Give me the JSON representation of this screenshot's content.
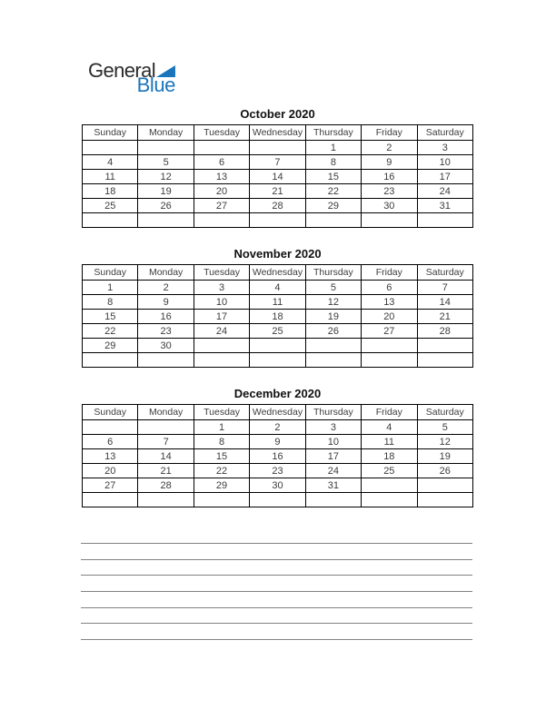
{
  "logo": {
    "word1": "General",
    "word2": "Blue",
    "brand_blue": "#1B75BC",
    "text_color": "#2B2B2B"
  },
  "calendar": {
    "day_headers": [
      "Sunday",
      "Monday",
      "Tuesday",
      "Wednesday",
      "Thursday",
      "Friday",
      "Saturday"
    ],
    "months": [
      {
        "title": "October 2020",
        "weeks": [
          [
            "",
            "",
            "",
            "",
            "1",
            "2",
            "3"
          ],
          [
            "4",
            "5",
            "6",
            "7",
            "8",
            "9",
            "10"
          ],
          [
            "11",
            "12",
            "13",
            "14",
            "15",
            "16",
            "17"
          ],
          [
            "18",
            "19",
            "20",
            "21",
            "22",
            "23",
            "24"
          ],
          [
            "25",
            "26",
            "27",
            "28",
            "29",
            "30",
            "31"
          ],
          [
            "",
            "",
            "",
            "",
            "",
            "",
            ""
          ]
        ]
      },
      {
        "title": "November 2020",
        "weeks": [
          [
            "1",
            "2",
            "3",
            "4",
            "5",
            "6",
            "7"
          ],
          [
            "8",
            "9",
            "10",
            "11",
            "12",
            "13",
            "14"
          ],
          [
            "15",
            "16",
            "17",
            "18",
            "19",
            "20",
            "21"
          ],
          [
            "22",
            "23",
            "24",
            "25",
            "26",
            "27",
            "28"
          ],
          [
            "29",
            "30",
            "",
            "",
            "",
            "",
            ""
          ],
          [
            "",
            "",
            "",
            "",
            "",
            "",
            ""
          ]
        ]
      },
      {
        "title": "December 2020",
        "weeks": [
          [
            "",
            "",
            "1",
            "2",
            "3",
            "4",
            "5"
          ],
          [
            "6",
            "7",
            "8",
            "9",
            "10",
            "11",
            "12"
          ],
          [
            "13",
            "14",
            "15",
            "16",
            "17",
            "18",
            "19"
          ],
          [
            "20",
            "21",
            "22",
            "23",
            "24",
            "25",
            "26"
          ],
          [
            "27",
            "28",
            "29",
            "30",
            "31",
            "",
            ""
          ],
          [
            "",
            "",
            "",
            "",
            "",
            "",
            ""
          ]
        ]
      }
    ]
  },
  "notes": {
    "line_count": 7,
    "line_color": "#828282"
  },
  "colors": {
    "table_border": "#000000",
    "day_text": "#3D3D3D",
    "title_text": "#111111",
    "page_background": "#FFFFFF"
  }
}
